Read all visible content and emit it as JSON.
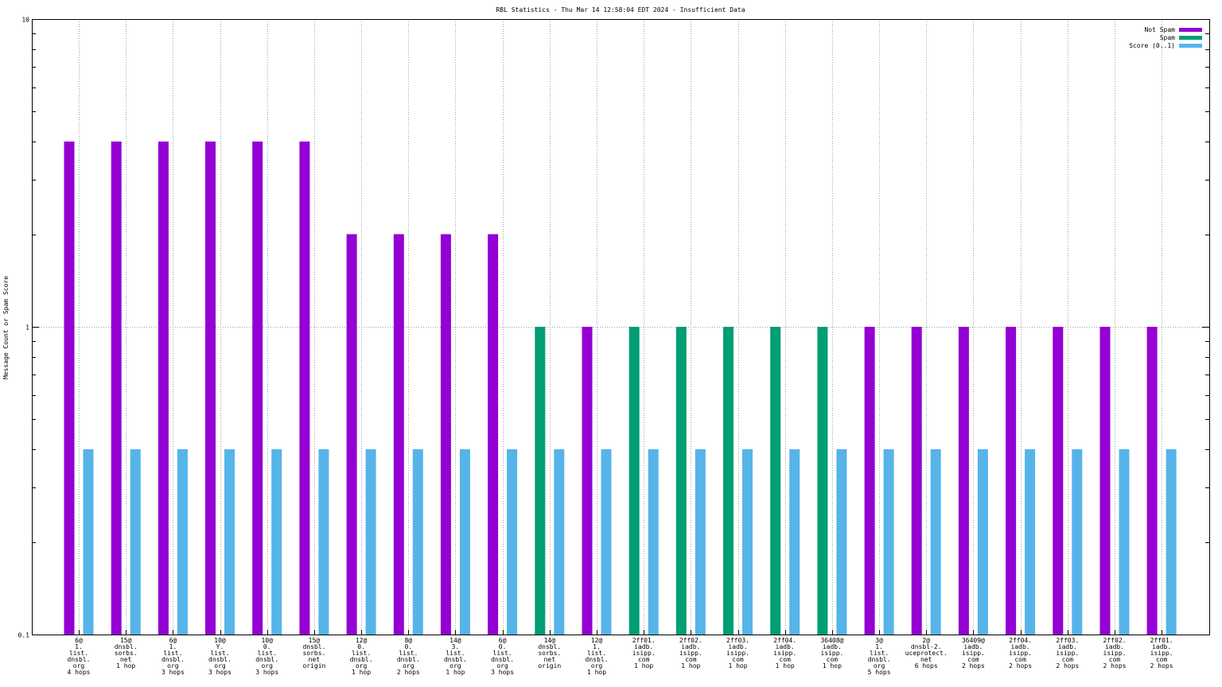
{
  "chart_data": {
    "type": "bar",
    "title": "RBL Statistics - Thu Mar 14 12:58:04 EDT 2024 - Insufficient Data",
    "ylabel": "Message Count or Spam Score",
    "xlabel": "",
    "yscale": "log",
    "ylim": [
      0.1,
      10
    ],
    "yticks": [
      "0.1",
      "1",
      "10"
    ],
    "grid": true,
    "legend_position": "top-right",
    "categories": [
      [
        "6@",
        "1.",
        "list.",
        "dnsbl.",
        "org",
        "4 hops"
      ],
      [
        "15@",
        "dnsbl.",
        "sorbs.",
        "net",
        "1 hop"
      ],
      [
        "6@",
        "1.",
        "list.",
        "dnsbl.",
        "org",
        "3 hops"
      ],
      [
        "10@",
        "Y.",
        "list.",
        "dnsbl.",
        "org",
        "3 hops"
      ],
      [
        "10@",
        "0.",
        "list.",
        "dnsbl.",
        "org",
        "3 hops"
      ],
      [
        "15@",
        "dnsbl.",
        "sorbs.",
        "net",
        "origin"
      ],
      [
        "12@",
        "0.",
        "list.",
        "dnsbl.",
        "org",
        "1 hop"
      ],
      [
        "8@",
        "0.",
        "list.",
        "dnsbl.",
        "org",
        "2 hops"
      ],
      [
        "14@",
        "3.",
        "list.",
        "dnsbl.",
        "org",
        "1 hop"
      ],
      [
        "6@",
        "0.",
        "list.",
        "dnsbl.",
        "org",
        "3 hops"
      ],
      [
        "14@",
        "dnsbl.",
        "sorbs.",
        "net",
        "origin"
      ],
      [
        "12@",
        "1.",
        "list.",
        "dnsbl.",
        "org",
        "1 hop"
      ],
      [
        "2ff01.",
        "iadb.",
        "isipp.",
        "com",
        "1 hop"
      ],
      [
        "2ff02.",
        "iadb.",
        "isipp.",
        "com",
        "1 hop"
      ],
      [
        "2ff03.",
        "iadb.",
        "isipp.",
        "com",
        "1 hop"
      ],
      [
        "2ff04.",
        "iadb.",
        "isipp.",
        "com",
        "1 hop"
      ],
      [
        "36408@",
        "iadb.",
        "isipp.",
        "com",
        "1 hop"
      ],
      [
        "3@",
        "1.",
        "list.",
        "dnsbl.",
        "org",
        "5 hops"
      ],
      [
        "2@",
        "dnsbl-2.",
        "uceprotect.",
        "net",
        "6 hops"
      ],
      [
        "36409@",
        "iadb.",
        "isipp.",
        "com",
        "2 hops"
      ],
      [
        "2ff04.",
        "iadb.",
        "isipp.",
        "com",
        "2 hops"
      ],
      [
        "2ff03.",
        "iadb.",
        "isipp.",
        "com",
        "2 hops"
      ],
      [
        "2ff02.",
        "iadb.",
        "isipp.",
        "com",
        "2 hops"
      ],
      [
        "2ff01.",
        "iadb.",
        "isipp.",
        "com",
        "2 hops"
      ]
    ],
    "series": [
      {
        "name": "Not Spam",
        "color": "#9400d3",
        "values": [
          4,
          4,
          4,
          4,
          4,
          4,
          2,
          2,
          2,
          2,
          null,
          1,
          null,
          null,
          null,
          null,
          null,
          1,
          1,
          1,
          1,
          1,
          1,
          1
        ]
      },
      {
        "name": "Spam",
        "color": "#009e73",
        "values": [
          null,
          null,
          null,
          null,
          null,
          null,
          null,
          null,
          null,
          null,
          1,
          null,
          1,
          1,
          1,
          1,
          1,
          null,
          null,
          null,
          null,
          null,
          null,
          null
        ]
      },
      {
        "name": "Score (0..1)",
        "color": "#56b4e9",
        "values": [
          0.4,
          0.4,
          0.4,
          0.4,
          0.4,
          0.4,
          0.4,
          0.4,
          0.4,
          0.4,
          0.4,
          0.4,
          0.4,
          0.4,
          0.4,
          0.4,
          0.4,
          0.4,
          0.4,
          0.4,
          0.4,
          0.4,
          0.4,
          0.4
        ]
      }
    ]
  }
}
